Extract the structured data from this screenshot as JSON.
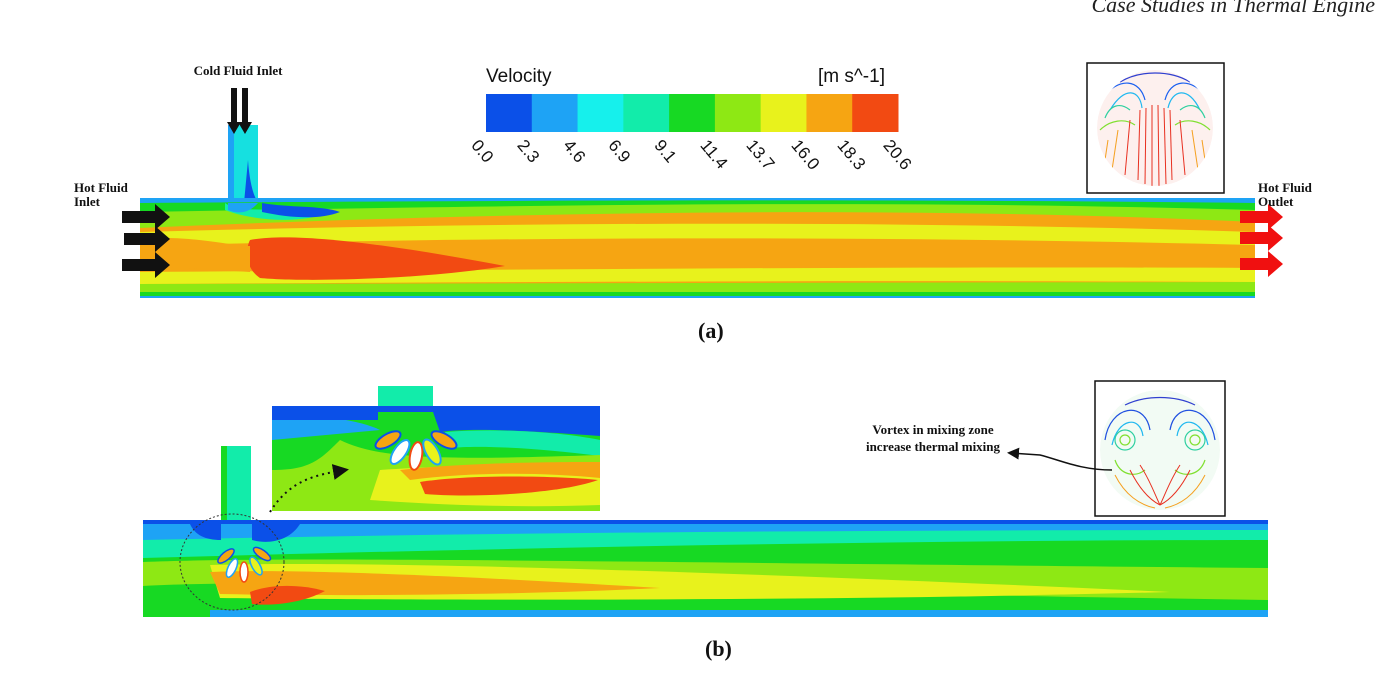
{
  "header": {
    "text": "Case Studies in Thermal Engine"
  },
  "legend": {
    "title": "Velocity",
    "unit": "[m s^-1]",
    "ticks": [
      "0.0",
      "2.3",
      "4.6",
      "6.9",
      "9.1",
      "11.4",
      "13.7",
      "16.0",
      "18.3",
      "20.6"
    ],
    "colors": [
      "#0b50e8",
      "#1ea3f5",
      "#16f0ec",
      "#12ecaa",
      "#17d923",
      "#8ee814",
      "#e8f21c",
      "#f6a512",
      "#f24a12"
    ]
  },
  "panel_a": {
    "caption": "(a)",
    "cold_inlet_label": "Cold Fluid Inlet",
    "hot_inlet_label": "Hot Fluid Inlet",
    "hot_outlet_label": "Hot Fluid Outlet"
  },
  "panel_b": {
    "caption": "(b)",
    "vortex_note": "Vortex in mixing zone increase thermal mixing"
  }
}
